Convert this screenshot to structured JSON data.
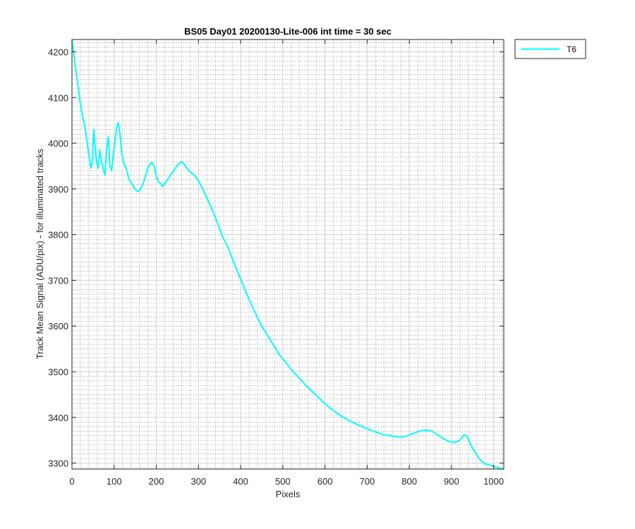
{
  "chart_data": {
    "type": "line",
    "title": "BS05 Day01 20200130-Lite-006 int time = 30 sec",
    "xlabel": "Pixels",
    "ylabel": "Track Mean Signal (ADU/pix) - for illuminated tracks",
    "xlim": [
      0,
      1024
    ],
    "ylim": [
      3287,
      4227
    ],
    "xticks": [
      0,
      100,
      200,
      300,
      400,
      500,
      600,
      700,
      800,
      900,
      1000
    ],
    "yticks": [
      3300,
      3400,
      3500,
      3600,
      3700,
      3800,
      3900,
      4000,
      4100,
      4200
    ],
    "xtick_labels": [
      "0",
      "100",
      "200",
      "300",
      "400",
      "500",
      "600",
      "700",
      "800",
      "900",
      "1000"
    ],
    "ytick_labels": [
      "3300",
      "3400",
      "3500",
      "3600",
      "3700",
      "3800",
      "3900",
      "4000",
      "4100",
      "4200"
    ],
    "grid": "major and minor",
    "legend_location": "outside top-right",
    "series": [
      {
        "name": "T6",
        "color": "#00ffff",
        "x": [
          0,
          5,
          10,
          15,
          20,
          25,
          30,
          35,
          40,
          45,
          48,
          52,
          55,
          58,
          62,
          66,
          70,
          74,
          78,
          82,
          86,
          90,
          94,
          98,
          102,
          106,
          110,
          114,
          118,
          122,
          126,
          130,
          135,
          140,
          145,
          150,
          155,
          160,
          165,
          170,
          175,
          180,
          185,
          190,
          195,
          200,
          205,
          210,
          215,
          220,
          225,
          230,
          235,
          240,
          245,
          250,
          255,
          260,
          265,
          270,
          280,
          290,
          300,
          310,
          320,
          330,
          340,
          350,
          360,
          370,
          380,
          390,
          400,
          410,
          420,
          430,
          440,
          450,
          460,
          470,
          480,
          490,
          500,
          520,
          540,
          560,
          580,
          600,
          620,
          640,
          660,
          680,
          700,
          720,
          740,
          760,
          780,
          790,
          800,
          810,
          820,
          830,
          840,
          850,
          860,
          870,
          880,
          890,
          900,
          910,
          920,
          925,
          930,
          935,
          940,
          945,
          950,
          960,
          970,
          980,
          990,
          1000,
          1010,
          1020,
          1024
        ],
        "y": [
          4226,
          4190,
          4155,
          4120,
          4085,
          4060,
          4040,
          4010,
          3975,
          3945,
          3960,
          4030,
          3990,
          3960,
          3945,
          3985,
          3960,
          3945,
          3930,
          3985,
          4015,
          3950,
          3940,
          3975,
          4005,
          4035,
          4045,
          4020,
          3980,
          3960,
          3950,
          3940,
          3920,
          3915,
          3905,
          3900,
          3895,
          3895,
          3905,
          3915,
          3930,
          3945,
          3955,
          3958,
          3950,
          3930,
          3915,
          3912,
          3905,
          3912,
          3918,
          3925,
          3932,
          3938,
          3945,
          3952,
          3956,
          3960,
          3955,
          3948,
          3938,
          3930,
          3918,
          3900,
          3880,
          3860,
          3838,
          3812,
          3790,
          3772,
          3748,
          3725,
          3702,
          3680,
          3658,
          3638,
          3618,
          3600,
          3585,
          3570,
          3555,
          3540,
          3528,
          3505,
          3485,
          3465,
          3448,
          3430,
          3415,
          3402,
          3392,
          3383,
          3375,
          3368,
          3362,
          3359,
          3357,
          3358,
          3362,
          3365,
          3369,
          3371,
          3372,
          3371,
          3366,
          3360,
          3354,
          3349,
          3346,
          3346,
          3350,
          3356,
          3362,
          3360,
          3352,
          3342,
          3332,
          3318,
          3305,
          3298,
          3296,
          3293,
          3290,
          3287,
          3286
        ]
      }
    ]
  }
}
